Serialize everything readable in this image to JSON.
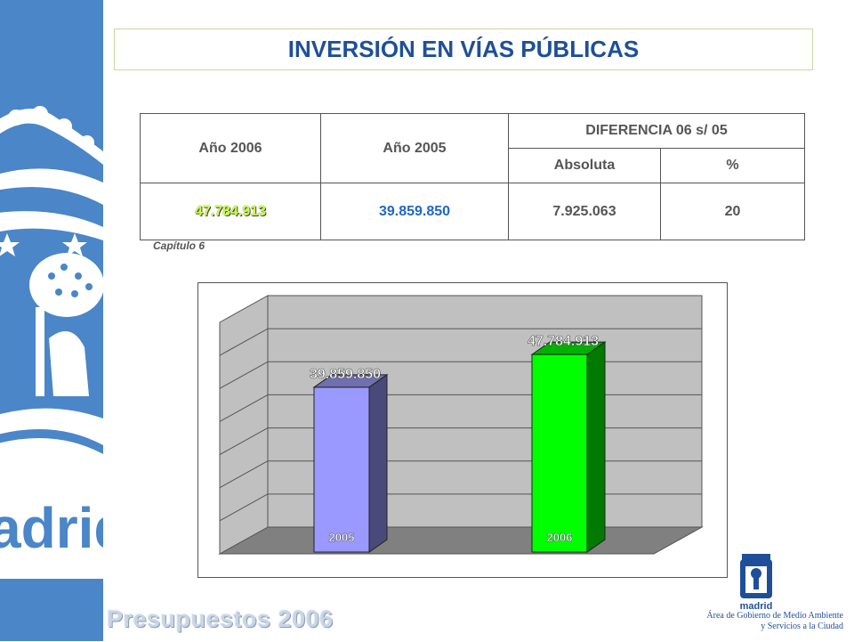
{
  "title": "INVERSIÓN EN VÍAS PÚBLICAS",
  "table": {
    "col_2006": "Año 2006",
    "col_2005": "Año 2005",
    "col_diff": "DIFERENCIA 06 s/ 05",
    "col_abs": "Absoluta",
    "col_pct": "%",
    "val_2006": "47.784.913",
    "val_2005": "39.859.850",
    "val_abs": "7.925.063",
    "val_pct": "20"
  },
  "caption": "Capítulo 6",
  "footer": "Presupuestos 2006",
  "sidebar_text": "adrid",
  "logo": {
    "name": "madrid",
    "line1": "Área de Gobierno de Medio Ambiente",
    "line2": "y Servicios a la Ciudad"
  },
  "colors": {
    "bar_2005": "#9999ff",
    "bar_2006": "#00ff00",
    "title": "#1f4f9a",
    "sidebar": "#4a86c8"
  },
  "chart_data": {
    "type": "bar",
    "categories": [
      "2005",
      "2006"
    ],
    "values": [
      39859850,
      47784913
    ],
    "data_labels": [
      "39.859.850",
      "47.784.913"
    ],
    "ylim": [
      0,
      56000000
    ],
    "grid": true,
    "style": "3d"
  }
}
